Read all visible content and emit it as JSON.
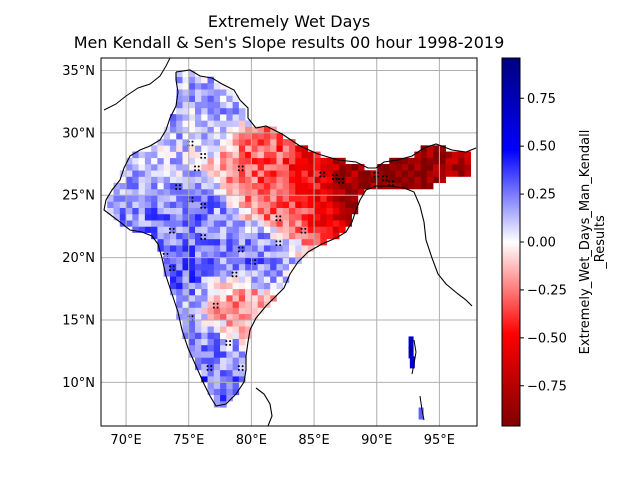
{
  "title": {
    "line1": "Extremely Wet Days",
    "line2": "Men Kendall & Sen's Slope results 00 hour 1998-2019"
  },
  "map": {
    "lon_range": [
      68,
      98
    ],
    "lat_range": [
      6.5,
      36
    ],
    "lon_ticks": [
      70,
      75,
      80,
      85,
      90,
      95
    ],
    "lat_ticks": [
      10,
      15,
      20,
      25,
      30,
      35
    ],
    "lon_tick_labels": [
      "70°E",
      "75°E",
      "80°E",
      "85°E",
      "90°E",
      "95°E"
    ],
    "lat_tick_labels": [
      "10°N",
      "15°N",
      "20°N",
      "25°N",
      "30°N",
      "35°N"
    ],
    "grid": true,
    "coastline_color": "#000000"
  },
  "colorbar": {
    "label_line1": "Extremely_Wet_Days_Man_Kendall",
    "label_line2": "_Results",
    "range": [
      -0.96,
      0.96
    ],
    "tick_values": [
      -0.75,
      -0.5,
      -0.25,
      0.0,
      0.25,
      0.5,
      0.75
    ],
    "tick_labels": [
      "−0.75",
      "−0.50",
      "−0.25",
      "0.00",
      "0.25",
      "0.50",
      "0.75"
    ],
    "colormap": "seismic_r",
    "colors": {
      "low": "#800000",
      "mid": "#ffffff",
      "high": "#000080"
    }
  },
  "chart_data": {
    "type": "heatmap",
    "title": "Extremely Wet Days\nMen Kendall & Sen's Slope results 00 hour 1998-2019",
    "xlabel": "",
    "ylabel": "",
    "xlim": [
      68,
      98
    ],
    "ylim": [
      6.5,
      36
    ],
    "colorbar_label": "Extremely_Wet_Days_Man_Kendall_Results",
    "value_range": [
      -0.96,
      0.96
    ],
    "regions": [
      {
        "lon": 87.5,
        "lat": 26.0,
        "value": -0.8
      },
      {
        "lon": 90.5,
        "lat": 26.0,
        "value": -0.9
      },
      {
        "lon": 84.5,
        "lat": 26.3,
        "value": -0.5
      },
      {
        "lon": 82.0,
        "lat": 24.5,
        "value": -0.3
      },
      {
        "lon": 80.5,
        "lat": 27.0,
        "value": -0.3
      },
      {
        "lon": 76.5,
        "lat": 31.5,
        "value": 0.15
      },
      {
        "lon": 75.5,
        "lat": 22.5,
        "value": 0.25
      },
      {
        "lon": 73.5,
        "lat": 19.0,
        "value": 0.3
      },
      {
        "lon": 80.0,
        "lat": 20.0,
        "value": 0.25
      },
      {
        "lon": 79.0,
        "lat": 15.5,
        "value": -0.2
      },
      {
        "lon": 77.0,
        "lat": 12.0,
        "value": 0.2
      },
      {
        "lon": 76.5,
        "lat": 9.5,
        "value": 0.3
      },
      {
        "lon": 92.8,
        "lat": 12.0,
        "value": 0.7
      }
    ]
  }
}
